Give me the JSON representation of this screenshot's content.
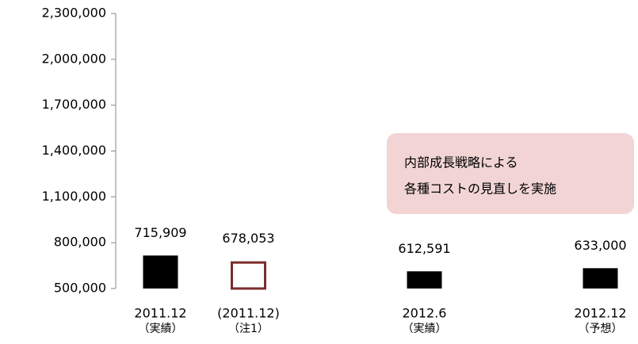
{
  "chart_data": {
    "type": "bar",
    "categories": [
      "2011.12",
      "(2011.12)",
      null,
      "2012.6",
      null,
      "2012.12"
    ],
    "category_notes": [
      "（実績）",
      "（注1）",
      null,
      "（実績）",
      null,
      "（予想）"
    ],
    "values": [
      715909,
      678053,
      null,
      612591,
      null,
      633000
    ],
    "value_labels": [
      "715,909",
      "678,053",
      null,
      "612,591",
      null,
      "633,000"
    ],
    "colors": [
      "#000000",
      "#7b2c2c",
      null,
      "#000000",
      null,
      "#000000"
    ],
    "hollow": [
      false,
      true,
      null,
      false,
      null,
      false
    ],
    "ylim": [
      500000,
      2300000
    ],
    "yticks": [
      {
        "value": 500000,
        "label": "500,000"
      },
      {
        "value": 800000,
        "label": "800,000"
      },
      {
        "value": 1100000,
        "label": "1,100,000"
      },
      {
        "value": 1400000,
        "label": "1,400,000"
      },
      {
        "value": 1700000,
        "label": "1,700,000"
      },
      {
        "value": 2000000,
        "label": "2,000,000"
      },
      {
        "value": 2300000,
        "label": "2,300,000"
      }
    ],
    "grid": false,
    "annotation": {
      "lines": [
        "内部成長戦略による",
        "各種コストの見直しを実施"
      ],
      "color": "#f2d4d4"
    }
  }
}
